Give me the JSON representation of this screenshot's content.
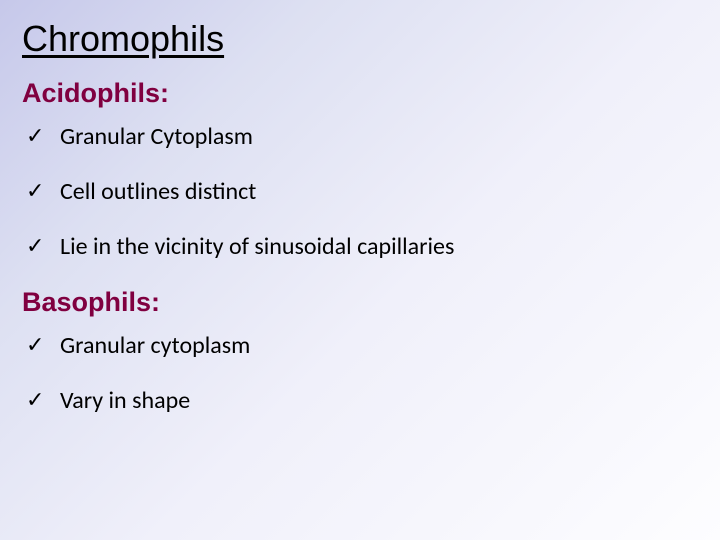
{
  "slide": {
    "title": "Chromophils",
    "title_fontsize": 36,
    "title_color": "#000000",
    "background_gradient": [
      "#c6c8ea",
      "#dde0f2",
      "#f0f0fa",
      "#fdfdff"
    ],
    "sections": [
      {
        "heading": "Acidophils:",
        "heading_color": "#800040",
        "heading_fontsize": 27,
        "bullets": [
          "Granular Cytoplasm",
          "Cell outlines distinct",
          " Lie in the vicinity of sinusoidal capillaries"
        ]
      },
      {
        "heading": "Basophils:",
        "heading_color": "#800040",
        "heading_fontsize": 27,
        "bullets": [
          "Granular cytoplasm",
          "Vary in shape"
        ]
      }
    ],
    "bullet_marker": "check",
    "bullet_fontsize": 24,
    "bullet_color": "#000000",
    "bullet_font": "Calibri"
  }
}
